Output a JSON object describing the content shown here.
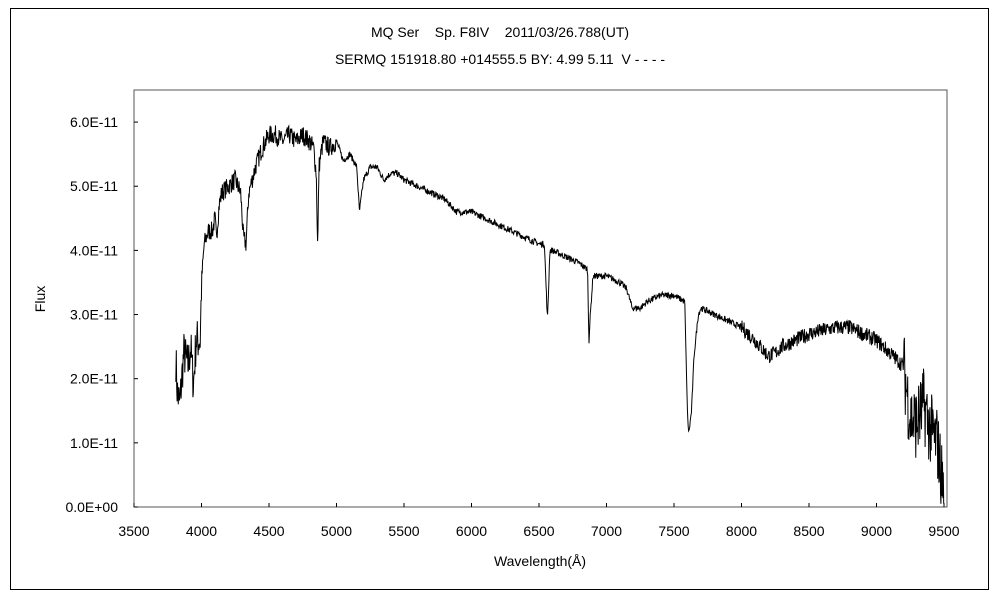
{
  "chart_data": {
    "type": "line",
    "title": "MQ Ser    Sp. F8IV    2011/03/26.788(UT)",
    "subtitle": "SERMQ 151918.80 +014555.5 BY: 4.99 5.11  V - - - -",
    "xlabel": "Wavelength(Å)",
    "ylabel": "Flux",
    "xlim": [
      3500,
      9500
    ],
    "ylim": [
      0,
      6.5e-11
    ],
    "x_ticks": [
      3500,
      4000,
      4500,
      5000,
      5500,
      6000,
      6500,
      7000,
      7500,
      8000,
      8500,
      9000,
      9500
    ],
    "x_tick_labels": [
      "3500",
      "4000",
      "4500",
      "5000",
      "5500",
      "6000",
      "6500",
      "7000",
      "7500",
      "8000",
      "8500",
      "9000",
      "9500"
    ],
    "y_ticks": [
      0,
      1e-11,
      2e-11,
      3e-11,
      4e-11,
      5e-11,
      6e-11
    ],
    "y_tick_labels": [
      "0.0E+00",
      "1.0E-11",
      "2.0E-11",
      "3.0E-11",
      "4.0E-11",
      "5.0E-11",
      "6.0E-11"
    ],
    "grid": false,
    "series": [
      {
        "name": "spectrum",
        "flux_unit": 1e-11,
        "x": [
          3810,
          3820,
          3840,
          3850,
          3870,
          3900,
          3920,
          3940,
          3960,
          3990,
          4000,
          4020,
          4050,
          4080,
          4100,
          4110,
          4130,
          4150,
          4200,
          4250,
          4290,
          4310,
          4330,
          4350,
          4400,
          4450,
          4500,
          4550,
          4600,
          4650,
          4700,
          4750,
          4800,
          4830,
          4850,
          4861,
          4870,
          4900,
          4950,
          5000,
          5050,
          5100,
          5150,
          5170,
          5200,
          5250,
          5300,
          5350,
          5400,
          5450,
          5500,
          5600,
          5700,
          5800,
          5890,
          5950,
          6000,
          6100,
          6200,
          6300,
          6400,
          6500,
          6540,
          6563,
          6580,
          6600,
          6700,
          6800,
          6860,
          6870,
          6880,
          6900,
          7000,
          7100,
          7150,
          7190,
          7250,
          7300,
          7400,
          7500,
          7580,
          7600,
          7610,
          7630,
          7650,
          7680,
          7700,
          7800,
          7900,
          8000,
          8100,
          8200,
          8250,
          8300,
          8400,
          8500,
          8600,
          8700,
          8800,
          8900,
          9000,
          9100,
          9200,
          9250,
          9300,
          9350,
          9400,
          9450,
          9480,
          9500
        ],
        "y": [
          2.3,
          1.8,
          1.6,
          1.9,
          2.4,
          2.2,
          2.5,
          1.9,
          2.6,
          2.6,
          3.5,
          4.1,
          4.3,
          4.3,
          4.5,
          4.2,
          4.7,
          4.9,
          5.0,
          5.1,
          4.9,
          4.2,
          4.1,
          4.9,
          5.3,
          5.6,
          5.8,
          5.8,
          5.7,
          5.8,
          5.7,
          5.8,
          5.7,
          5.6,
          5.2,
          4.0,
          5.3,
          5.7,
          5.6,
          5.7,
          5.4,
          5.5,
          5.3,
          4.6,
          5.1,
          5.3,
          5.3,
          5.1,
          5.2,
          5.2,
          5.1,
          5.0,
          4.9,
          4.8,
          4.6,
          4.6,
          4.6,
          4.5,
          4.4,
          4.3,
          4.2,
          4.1,
          4.1,
          2.9,
          4.0,
          4.0,
          3.9,
          3.8,
          3.7,
          2.6,
          3.0,
          3.6,
          3.6,
          3.5,
          3.4,
          3.1,
          3.1,
          3.2,
          3.3,
          3.3,
          3.2,
          1.4,
          1.15,
          1.5,
          2.4,
          3.0,
          3.1,
          3.0,
          2.9,
          2.8,
          2.6,
          2.35,
          2.4,
          2.5,
          2.6,
          2.7,
          2.75,
          2.8,
          2.8,
          2.7,
          2.6,
          2.4,
          2.2,
          1.4,
          1.3,
          1.6,
          1.2,
          1.0,
          0.5,
          0.3
        ]
      }
    ]
  }
}
